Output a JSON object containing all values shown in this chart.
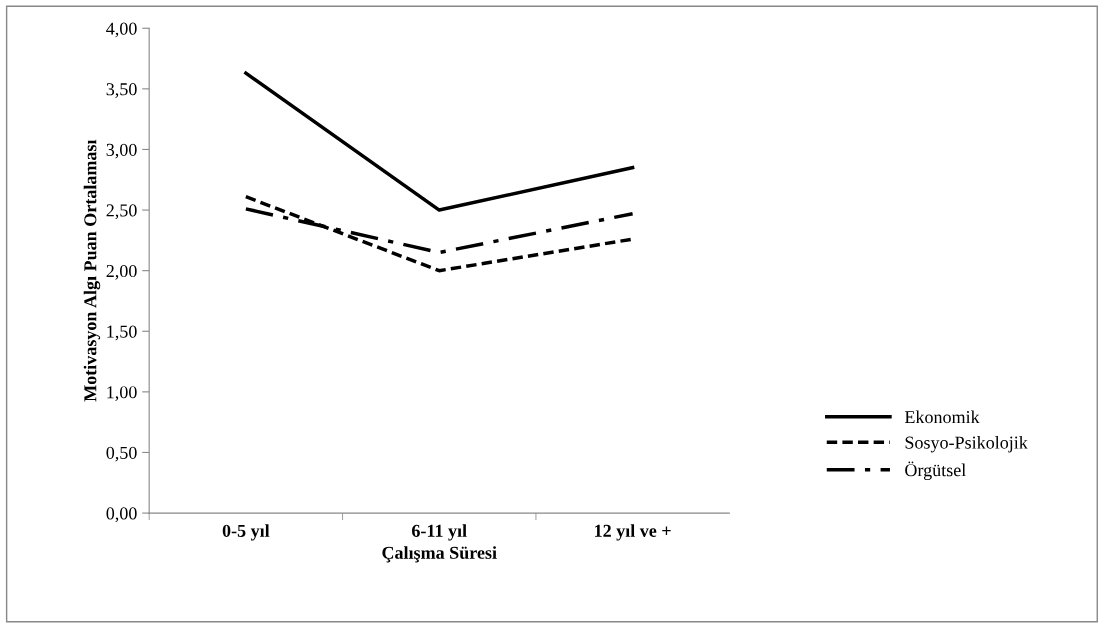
{
  "chart_data": {
    "type": "line",
    "xlabel": "Çalışma Süresi",
    "ylabel": "Motivasyon Algı Puan Ortalaması",
    "categories": [
      "0-5 yıl",
      "6-11 yıl",
      "12 yıl ve +"
    ],
    "series": [
      {
        "name": "Ekonomik",
        "color": "#000000",
        "line_style": "solid",
        "values": [
          3.63,
          2.5,
          2.85
        ]
      },
      {
        "name": "Sosyo-Psikolojik",
        "color": "#000000",
        "line_style": "dashed",
        "values": [
          2.61,
          2.0,
          2.26
        ]
      },
      {
        "name": "Örgütsel",
        "color": "#000000",
        "line_style": "dashdot",
        "values": [
          2.51,
          2.15,
          2.47
        ]
      }
    ],
    "ylim": [
      0,
      4
    ],
    "yticks": [
      {
        "value": 0,
        "label": "0,00"
      },
      {
        "value": 0.5,
        "label": "0,50"
      },
      {
        "value": 1,
        "label": "1,00"
      },
      {
        "value": 1.5,
        "label": "1,50"
      },
      {
        "value": 2,
        "label": "2,00"
      },
      {
        "value": 2.5,
        "label": "2,50"
      },
      {
        "value": 3,
        "label": "3,00"
      },
      {
        "value": 3.5,
        "label": "3,50"
      },
      {
        "value": 4,
        "label": "4,00"
      }
    ],
    "grid": false,
    "legend": "right",
    "marker": "none"
  }
}
